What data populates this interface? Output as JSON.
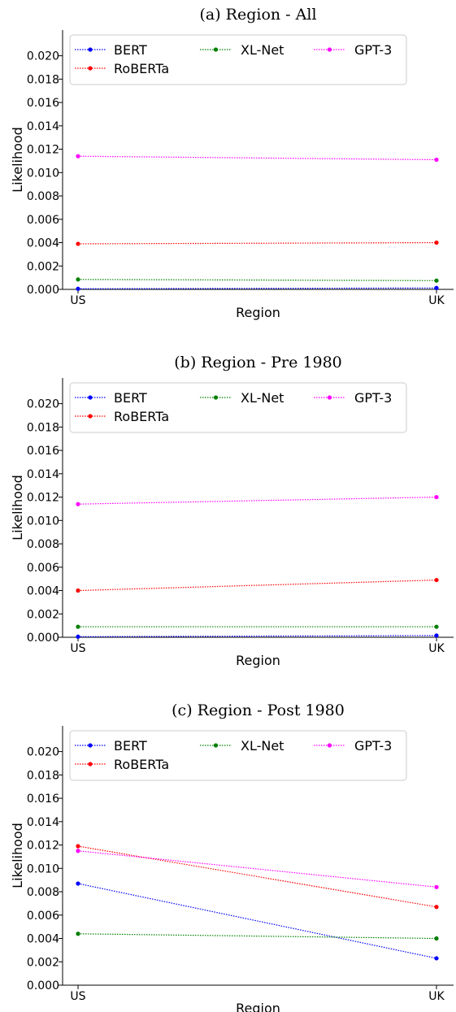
{
  "chart_data": [
    {
      "type": "line",
      "title": "(a) Region - All",
      "xlabel": "Region",
      "ylabel": "Likelihood",
      "categories": [
        "US",
        "UK"
      ],
      "ylim": [
        0,
        0.0222
      ],
      "yticks": [
        "0.000",
        "0.002",
        "0.004",
        "0.006",
        "0.008",
        "0.010",
        "0.012",
        "0.014",
        "0.016",
        "0.018",
        "0.020"
      ],
      "legend_position": "top-left",
      "series": [
        {
          "name": "BERT",
          "color": "#0000ff",
          "values": [
            5e-05,
            0.00012
          ]
        },
        {
          "name": "RoBERTa",
          "color": "#ff0000",
          "values": [
            0.0039,
            0.004
          ]
        },
        {
          "name": "XL-Net",
          "color": "#008000",
          "values": [
            0.00085,
            0.00075
          ]
        },
        {
          "name": "GPT-3",
          "color": "#ff00ff",
          "values": [
            0.0114,
            0.0111
          ]
        }
      ]
    },
    {
      "type": "line",
      "title": "(b) Region - Pre 1980",
      "xlabel": "Region",
      "ylabel": "Likelihood",
      "categories": [
        "US",
        "UK"
      ],
      "ylim": [
        0,
        0.0222
      ],
      "yticks": [
        "0.000",
        "0.002",
        "0.004",
        "0.006",
        "0.008",
        "0.010",
        "0.012",
        "0.014",
        "0.016",
        "0.018",
        "0.020"
      ],
      "legend_position": "top-left",
      "series": [
        {
          "name": "BERT",
          "color": "#0000ff",
          "values": [
            5e-05,
            0.00015
          ]
        },
        {
          "name": "RoBERTa",
          "color": "#ff0000",
          "values": [
            0.004,
            0.0049
          ]
        },
        {
          "name": "XL-Net",
          "color": "#008000",
          "values": [
            0.0009,
            0.0009
          ]
        },
        {
          "name": "GPT-3",
          "color": "#ff00ff",
          "values": [
            0.0114,
            0.012
          ]
        }
      ]
    },
    {
      "type": "line",
      "title": "(c) Region - Post 1980",
      "xlabel": "Region",
      "ylabel": "Likelihood",
      "categories": [
        "US",
        "UK"
      ],
      "ylim": [
        0,
        0.0222
      ],
      "yticks": [
        "0.000",
        "0.002",
        "0.004",
        "0.006",
        "0.008",
        "0.010",
        "0.012",
        "0.014",
        "0.016",
        "0.018",
        "0.020"
      ],
      "legend_position": "top-left",
      "series": [
        {
          "name": "BERT",
          "color": "#0000ff",
          "values": [
            0.0087,
            0.0023
          ]
        },
        {
          "name": "RoBERTa",
          "color": "#ff0000",
          "values": [
            0.0119,
            0.0067
          ]
        },
        {
          "name": "XL-Net",
          "color": "#008000",
          "values": [
            0.0044,
            0.004
          ]
        },
        {
          "name": "GPT-3",
          "color": "#ff00ff",
          "values": [
            0.0115,
            0.0084
          ]
        }
      ]
    }
  ]
}
